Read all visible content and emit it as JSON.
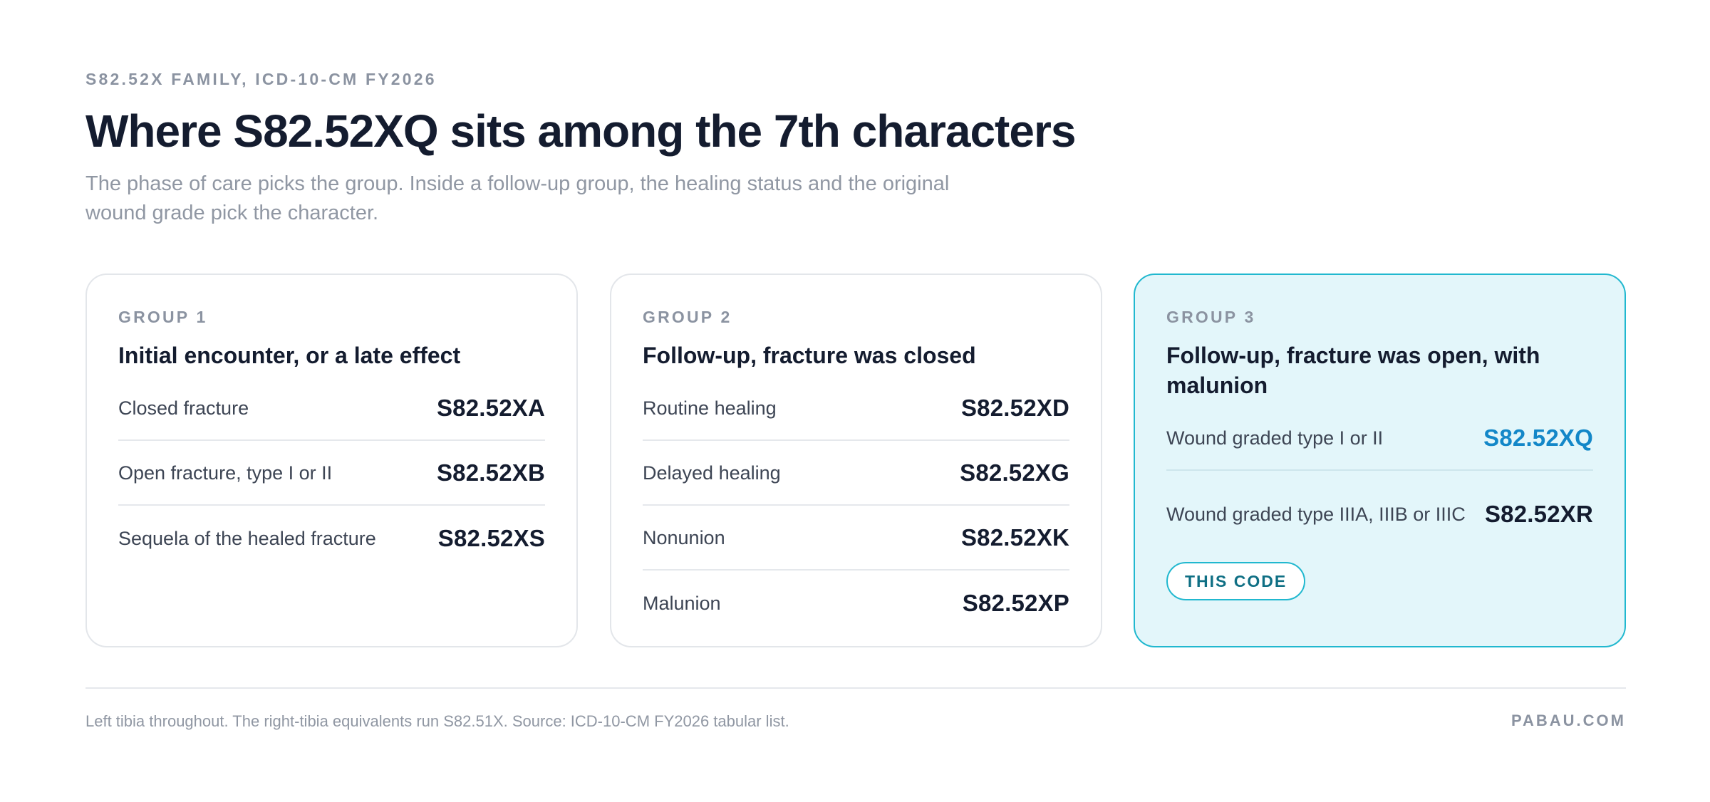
{
  "header": {
    "eyebrow": "S82.52X FAMILY, ICD-10-CM FY2026",
    "title": "Where S82.52XQ sits among the 7th characters",
    "subtitle": "The phase of care picks the group. Inside a follow-up group, the healing status and the original wound grade pick the character."
  },
  "groups": [
    {
      "label": "GROUP 1",
      "title": "Initial encounter, or a late effect",
      "rows": [
        {
          "desc": "Closed fracture",
          "code": "S82.52XA"
        },
        {
          "desc": "Open fracture, type I or II",
          "code": "S82.52XB"
        },
        {
          "desc": "Sequela of the healed fracture",
          "code": "S82.52XS"
        }
      ]
    },
    {
      "label": "GROUP 2",
      "title": "Follow-up, fracture was closed",
      "rows": [
        {
          "desc": "Routine healing",
          "code": "S82.52XD"
        },
        {
          "desc": "Delayed healing",
          "code": "S82.52XG"
        },
        {
          "desc": "Nonunion",
          "code": "S82.52XK"
        },
        {
          "desc": "Malunion",
          "code": "S82.52XP"
        }
      ]
    },
    {
      "label": "GROUP 3",
      "title": "Follow-up, fracture was open, with malunion",
      "rows": [
        {
          "desc": "Wound graded type I or II",
          "code": "S82.52XQ",
          "highlighted": true
        },
        {
          "desc": "Wound graded type IIIA, IIIB or IIIC",
          "code": "S82.52XR"
        }
      ],
      "badge": "THIS CODE",
      "highlighted": true
    }
  ],
  "footer": {
    "note": "Left tibia throughout. The right-tibia equivalents run S82.51X. Source: ICD-10-CM FY2026 tabular list.",
    "brand": "PABAU.COM"
  },
  "colors": {
    "accent": "#21b8cf",
    "highlight_code": "#1387c8",
    "highlight_bg": "#e3f6fa",
    "title": "#141c2f",
    "muted": "#8b93a1"
  }
}
